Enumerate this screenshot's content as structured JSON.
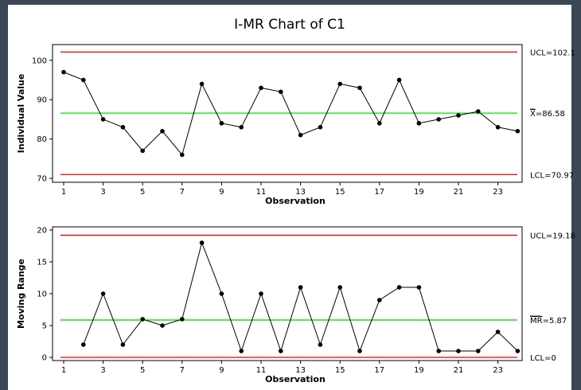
{
  "chart_data": {
    "title": "I-MR Chart of C1",
    "colors": {
      "limit": "#e00000",
      "center": "#00e000",
      "data": "#000000"
    },
    "x_ticks": [
      1,
      3,
      5,
      7,
      9,
      11,
      13,
      15,
      17,
      19,
      21,
      23
    ],
    "charts": [
      {
        "type": "line",
        "name": "individual",
        "ylabel": "Individual Value",
        "xlabel": "Observation",
        "ylim": [
          69,
          104
        ],
        "y_ticks": [
          70,
          80,
          90,
          100
        ],
        "x": [
          1,
          2,
          3,
          4,
          5,
          6,
          7,
          8,
          9,
          10,
          11,
          12,
          13,
          14,
          15,
          16,
          17,
          18,
          19,
          20,
          21,
          22,
          23,
          24
        ],
        "values": [
          97,
          95,
          85,
          83,
          77,
          82,
          76,
          94,
          84,
          83,
          93,
          92,
          81,
          83,
          94,
          93,
          84,
          95,
          84,
          85,
          86,
          87,
          83,
          82
        ],
        "ucl": 102.1,
        "center": 86.58,
        "lcl": 70.97,
        "ucl_label": "UCL=102.1",
        "center_symbol": "X",
        "center_label": "=86.58",
        "lcl_label": "LCL=70.97"
      },
      {
        "type": "line",
        "name": "moving-range",
        "ylabel": "Moving Range",
        "xlabel": "Observation",
        "ylim": [
          -0.5,
          20.5
        ],
        "y_ticks": [
          0,
          5,
          10,
          15,
          20
        ],
        "x": [
          2,
          3,
          4,
          5,
          6,
          7,
          8,
          9,
          10,
          11,
          12,
          13,
          14,
          15,
          16,
          17,
          18,
          19,
          20,
          21,
          22,
          23,
          24
        ],
        "values": [
          2,
          10,
          2,
          6,
          5,
          6,
          18,
          10,
          1,
          10,
          1,
          11,
          2,
          11,
          1,
          9,
          11,
          11,
          1,
          1,
          1,
          4,
          1
        ],
        "ucl": 19.18,
        "center": 5.87,
        "lcl": 0,
        "ucl_label": "UCL=19.18",
        "center_symbol": "MR",
        "center_label": "=5.87",
        "lcl_label": "LCL=0"
      }
    ]
  }
}
